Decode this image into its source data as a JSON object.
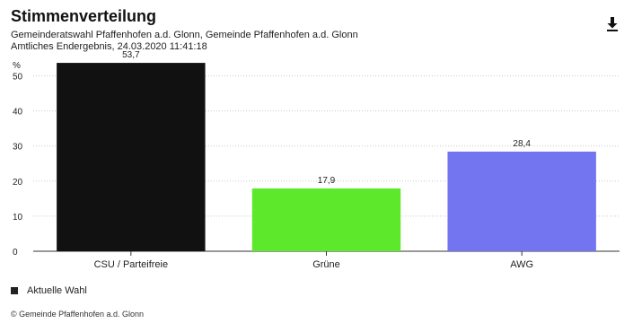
{
  "header": {
    "title": "Stimmenverteilung",
    "subtitle_line1": "Gemeinderatswahl Pfaffenhofen a.d. Glonn, Gemeinde Pfaffenhofen a.d. Glonn",
    "subtitle_line2": "Amtliches Endergebnis, 24.03.2020 11:41:18",
    "download_icon": "download-icon"
  },
  "chart_data": {
    "type": "bar",
    "ylabel": "%",
    "ylim": [
      0,
      55
    ],
    "yticks": [
      0,
      10,
      20,
      30,
      40,
      50
    ],
    "grid": true,
    "categories": [
      "CSU / Parteifreie",
      "Grüne",
      "AWG"
    ],
    "value_labels": [
      "53,7",
      "17,9",
      "28,4"
    ],
    "series": [
      {
        "name": "Aktuelle Wahl",
        "values": [
          53.7,
          17.9,
          28.4
        ],
        "colors": [
          "#111111",
          "#5ee82b",
          "#7274f0"
        ]
      }
    ],
    "legend_position": "bottom-left"
  },
  "legend": {
    "items": [
      {
        "label": "Aktuelle Wahl",
        "color": "#222222"
      }
    ]
  },
  "footer": {
    "copyright": "© Gemeinde Pfaffenhofen a.d. Glonn"
  }
}
